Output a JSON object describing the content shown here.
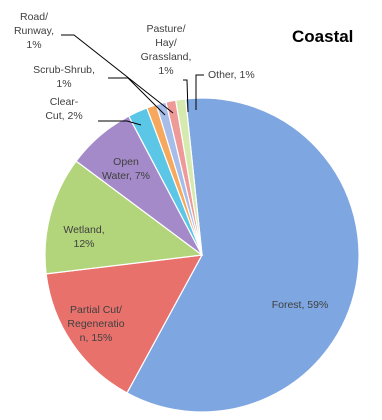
{
  "chart_data": {
    "type": "pie",
    "title": "Coastal",
    "slices": [
      {
        "name": "Forest",
        "value": 59,
        "label": "Forest, 59%",
        "color": "#7ea6e0"
      },
      {
        "name": "Partial Cut/ Regeneration",
        "value": 15,
        "label": "Partial Cut/ Regeneratio n, 15%",
        "color": "#e8716c"
      },
      {
        "name": "Wetland",
        "value": 12,
        "label": "Wetland, 12%",
        "color": "#b2d47a"
      },
      {
        "name": "Open Water",
        "value": 7,
        "label": "Open Water, 7%",
        "color": "#a48ac8"
      },
      {
        "name": "Clear-Cut",
        "value": 2,
        "label": "Clear- Cut, 2%",
        "color": "#5bc6e6"
      },
      {
        "name": "Scrub-Shrub",
        "value": 1,
        "label": "Scrub-Shrub, 1%",
        "color": "#f6a85c"
      },
      {
        "name": "Road/ Runway",
        "value": 1,
        "label": "Road/ Runway, 1%",
        "color": "#a5bde8"
      },
      {
        "name": "Pasture/ Hay/ Grassland",
        "value": 1,
        "label": "Pasture/ Hay/ Grassland, 1%",
        "color": "#ee9a99"
      },
      {
        "name": "Other",
        "value": 1,
        "label": "Other, 1%",
        "color": "#d6eab0"
      }
    ]
  }
}
